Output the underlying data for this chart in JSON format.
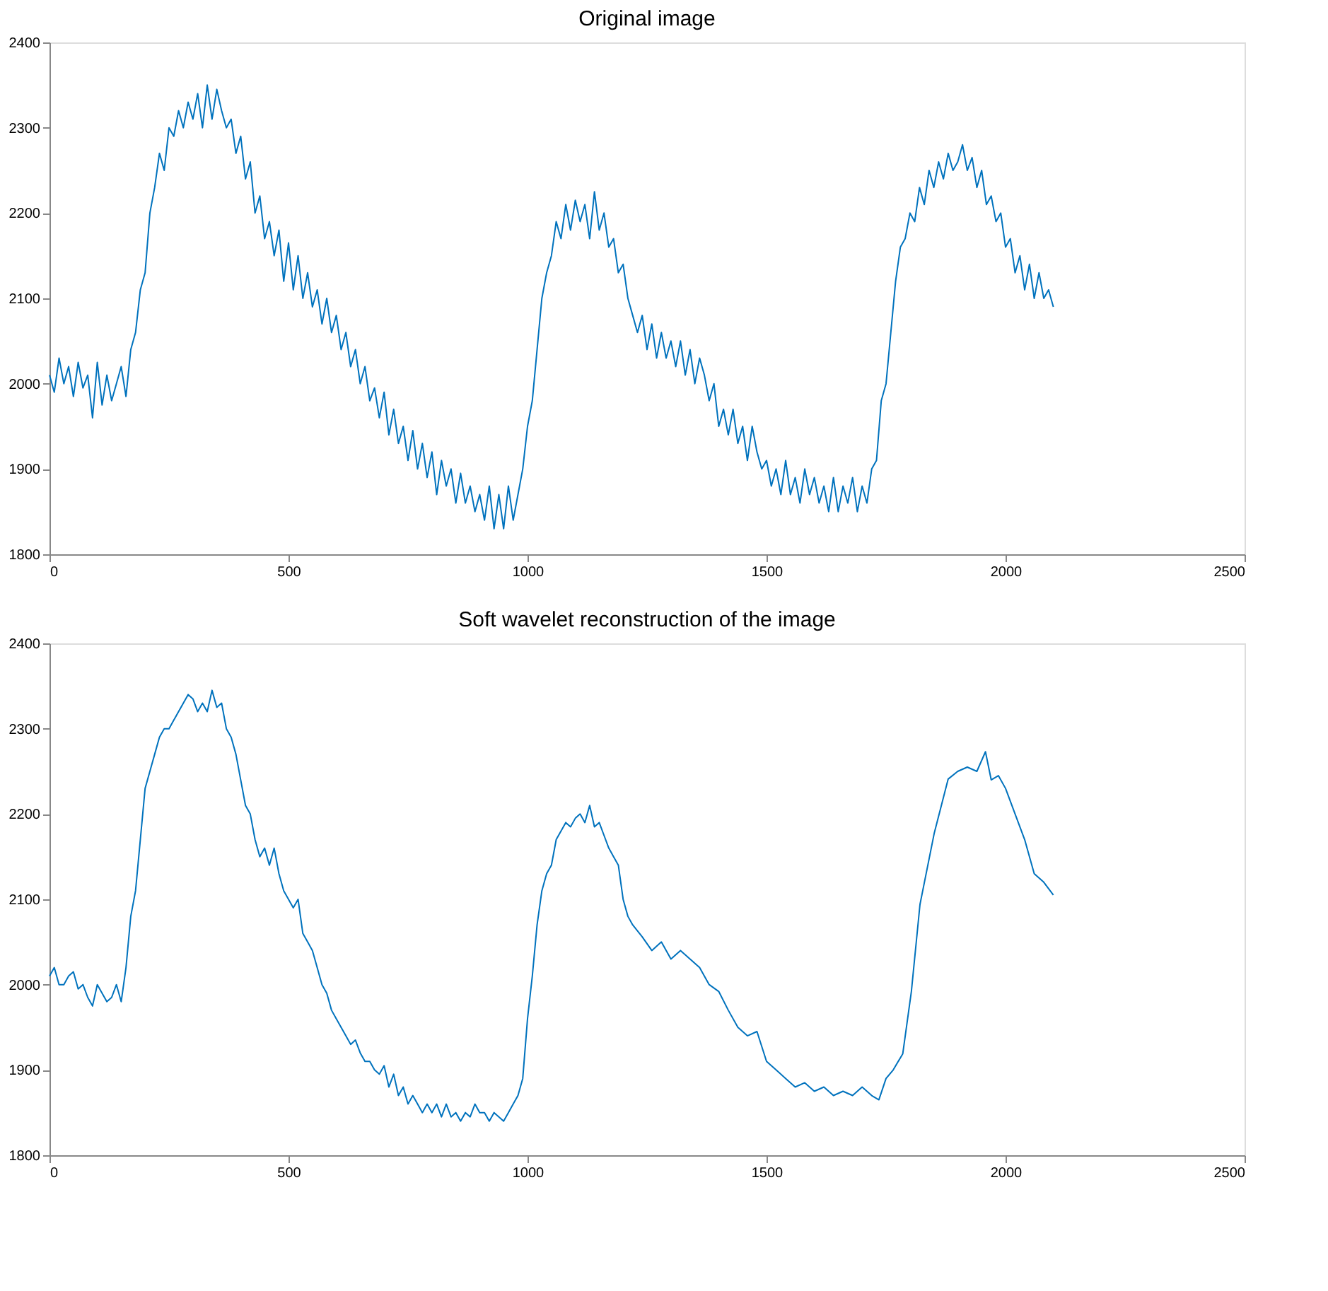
{
  "chart_data": [
    {
      "type": "line",
      "title": "Original image",
      "xlim": [
        0,
        2500
      ],
      "ylim": [
        1800,
        2400
      ],
      "xticks": [
        0,
        500,
        1000,
        1500,
        2000,
        2500
      ],
      "yticks": [
        1800,
        1900,
        2000,
        2100,
        2200,
        2300,
        2400
      ],
      "grid": false,
      "series": [
        {
          "color": "#0072bd",
          "x": [
            0,
            10,
            20,
            30,
            40,
            50,
            60,
            70,
            80,
            90,
            100,
            110,
            120,
            130,
            140,
            150,
            160,
            170,
            180,
            190,
            200,
            210,
            220,
            230,
            240,
            250,
            260,
            270,
            280,
            290,
            300,
            310,
            320,
            330,
            340,
            350,
            360,
            370,
            380,
            390,
            400,
            410,
            420,
            430,
            440,
            450,
            460,
            470,
            480,
            490,
            500,
            510,
            520,
            530,
            540,
            550,
            560,
            570,
            580,
            590,
            600,
            610,
            620,
            630,
            640,
            650,
            660,
            670,
            680,
            690,
            700,
            710,
            720,
            730,
            740,
            750,
            760,
            770,
            780,
            790,
            800,
            810,
            820,
            830,
            840,
            850,
            860,
            870,
            880,
            890,
            900,
            910,
            920,
            930,
            940,
            950,
            960,
            970,
            980,
            990,
            1000,
            1010,
            1020,
            1030,
            1040,
            1050,
            1060,
            1070,
            1080,
            1090,
            1100,
            1110,
            1120,
            1130,
            1140,
            1150,
            1160,
            1170,
            1180,
            1190,
            1200,
            1210,
            1220,
            1230,
            1240,
            1250,
            1260,
            1270,
            1280,
            1290,
            1300,
            1310,
            1320,
            1330,
            1340,
            1350,
            1360,
            1370,
            1380,
            1390,
            1400,
            1410,
            1420,
            1430,
            1440,
            1450,
            1460,
            1470,
            1480,
            1490,
            1500,
            1510,
            1520,
            1530,
            1540,
            1550,
            1560,
            1570,
            1580,
            1590,
            1600,
            1610,
            1620,
            1630,
            1640,
            1650,
            1660,
            1670,
            1680,
            1690,
            1700,
            1710,
            1720,
            1730,
            1740,
            1750,
            1760,
            1770,
            1780,
            1790,
            1800,
            1810,
            1820,
            1830,
            1840,
            1850,
            1860,
            1870,
            1880,
            1890,
            1900,
            1910,
            1920,
            1930,
            1940,
            1950,
            1960,
            1970,
            1980,
            1990,
            2000,
            2010,
            2020,
            2030,
            2040,
            2050,
            2060,
            2070,
            2080,
            2090,
            2100
          ],
          "values": [
            2010,
            1990,
            2030,
            2000,
            2020,
            1985,
            2025,
            1995,
            2010,
            1960,
            2025,
            1975,
            2010,
            1980,
            2000,
            2020,
            1985,
            2040,
            2060,
            2110,
            2130,
            2200,
            2230,
            2270,
            2250,
            2300,
            2290,
            2320,
            2300,
            2330,
            2310,
            2340,
            2300,
            2350,
            2310,
            2345,
            2320,
            2300,
            2310,
            2270,
            2290,
            2240,
            2260,
            2200,
            2220,
            2170,
            2190,
            2150,
            2180,
            2120,
            2165,
            2110,
            2150,
            2100,
            2130,
            2090,
            2110,
            2070,
            2100,
            2060,
            2080,
            2040,
            2060,
            2020,
            2040,
            2000,
            2020,
            1980,
            1995,
            1960,
            1990,
            1940,
            1970,
            1930,
            1950,
            1910,
            1945,
            1900,
            1930,
            1890,
            1920,
            1870,
            1910,
            1880,
            1900,
            1860,
            1895,
            1860,
            1880,
            1850,
            1870,
            1840,
            1880,
            1830,
            1870,
            1830,
            1880,
            1840,
            1870,
            1900,
            1950,
            1980,
            2040,
            2100,
            2130,
            2150,
            2190,
            2170,
            2210,
            2180,
            2215,
            2190,
            2210,
            2170,
            2225,
            2180,
            2200,
            2160,
            2170,
            2130,
            2140,
            2100,
            2080,
            2060,
            2080,
            2040,
            2070,
            2030,
            2060,
            2030,
            2050,
            2020,
            2050,
            2010,
            2040,
            2000,
            2030,
            2010,
            1980,
            2000,
            1950,
            1970,
            1940,
            1970,
            1930,
            1950,
            1910,
            1950,
            1920,
            1900,
            1910,
            1880,
            1900,
            1870,
            1910,
            1870,
            1890,
            1860,
            1900,
            1870,
            1890,
            1860,
            1880,
            1850,
            1890,
            1850,
            1880,
            1860,
            1890,
            1850,
            1880,
            1860,
            1900,
            1910,
            1980,
            2000,
            2060,
            2120,
            2160,
            2170,
            2200,
            2190,
            2230,
            2210,
            2250,
            2230,
            2260,
            2240,
            2270,
            2250,
            2260,
            2280,
            2250,
            2265,
            2230,
            2250,
            2210,
            2220,
            2190,
            2200,
            2160,
            2170,
            2130,
            2150,
            2110,
            2140,
            2100,
            2130,
            2100,
            2110,
            2090
          ]
        }
      ]
    },
    {
      "type": "line",
      "title": "Soft wavelet reconstruction of the image",
      "xlim": [
        0,
        2500
      ],
      "ylim": [
        1800,
        2400
      ],
      "xticks": [
        0,
        500,
        1000,
        1500,
        2000,
        2500
      ],
      "yticks": [
        1800,
        1900,
        2000,
        2100,
        2200,
        2300,
        2400
      ],
      "grid": false,
      "series": [
        {
          "color": "#0072bd",
          "x": [
            0,
            10,
            20,
            30,
            40,
            50,
            60,
            70,
            80,
            90,
            100,
            110,
            120,
            130,
            140,
            150,
            160,
            170,
            180,
            190,
            200,
            210,
            220,
            230,
            240,
            250,
            260,
            270,
            280,
            290,
            300,
            310,
            320,
            330,
            340,
            350,
            360,
            370,
            380,
            390,
            400,
            410,
            420,
            430,
            440,
            450,
            460,
            470,
            480,
            490,
            500,
            510,
            520,
            530,
            540,
            550,
            560,
            570,
            580,
            590,
            600,
            610,
            620,
            630,
            640,
            650,
            660,
            670,
            680,
            690,
            700,
            710,
            720,
            730,
            740,
            750,
            760,
            770,
            780,
            790,
            800,
            810,
            820,
            830,
            840,
            850,
            860,
            870,
            880,
            890,
            900,
            910,
            920,
            930,
            940,
            950,
            960,
            970,
            980,
            990,
            1000,
            1010,
            1020,
            1030,
            1040,
            1050,
            1060,
            1070,
            1080,
            1090,
            1100,
            1110,
            1120,
            1130,
            1140,
            1150,
            1160,
            1170,
            1180,
            1190,
            1200,
            1210,
            1220,
            1240,
            1260,
            1280,
            1300,
            1320,
            1340,
            1360,
            1380,
            1400,
            1420,
            1440,
            1460,
            1480,
            1500,
            1520,
            1540,
            1560,
            1580,
            1600,
            1620,
            1640,
            1660,
            1680,
            1700,
            1720,
            1735,
            1750,
            1765,
            1785,
            1803,
            1821,
            1851,
            1880,
            1900,
            1920,
            1940,
            1958,
            1970,
            1985,
            2000,
            2020,
            2040,
            2060,
            2080,
            2100
          ],
          "values": [
            2010,
            2020,
            2000,
            2000,
            2010,
            2015,
            1995,
            2000,
            1985,
            1975,
            2000,
            1990,
            1980,
            1985,
            2000,
            1980,
            2020,
            2080,
            2110,
            2170,
            2230,
            2250,
            2270,
            2290,
            2300,
            2300,
            2310,
            2320,
            2330,
            2340,
            2335,
            2320,
            2330,
            2320,
            2345,
            2325,
            2330,
            2300,
            2290,
            2270,
            2240,
            2210,
            2200,
            2170,
            2150,
            2160,
            2140,
            2160,
            2130,
            2110,
            2100,
            2090,
            2100,
            2060,
            2050,
            2040,
            2020,
            2000,
            1990,
            1970,
            1960,
            1950,
            1940,
            1930,
            1935,
            1920,
            1910,
            1910,
            1900,
            1895,
            1905,
            1880,
            1895,
            1870,
            1880,
            1860,
            1870,
            1860,
            1850,
            1860,
            1850,
            1860,
            1845,
            1860,
            1845,
            1850,
            1840,
            1850,
            1845,
            1860,
            1850,
            1850,
            1840,
            1850,
            1845,
            1840,
            1850,
            1860,
            1870,
            1890,
            1960,
            2010,
            2070,
            2110,
            2130,
            2140,
            2170,
            2180,
            2190,
            2185,
            2195,
            2200,
            2190,
            2210,
            2185,
            2190,
            2175,
            2160,
            2150,
            2140,
            2100,
            2080,
            2070,
            2056,
            2040,
            2050,
            2030,
            2040,
            2030,
            2020,
            2000,
            1992,
            1970,
            1950,
            1940,
            1945,
            1910,
            1900,
            1890,
            1880,
            1885,
            1875,
            1880,
            1870,
            1875,
            1870,
            1880,
            1870,
            1865,
            1890,
            1900,
            1919,
            1992,
            2094,
            2178,
            2241,
            2250,
            2255,
            2250,
            2273,
            2240,
            2245,
            2230,
            2200,
            2170,
            2130,
            2120,
            2105
          ]
        }
      ]
    }
  ]
}
